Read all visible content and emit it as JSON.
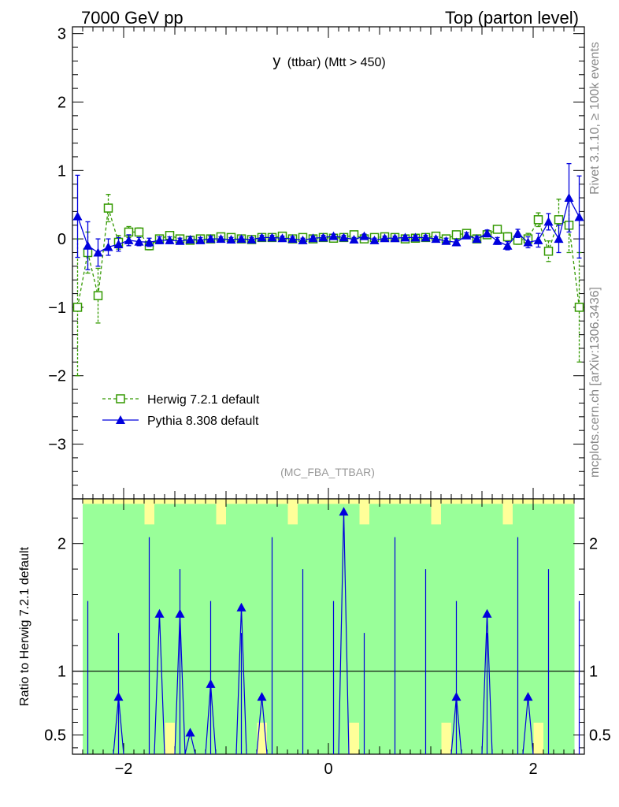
{
  "header": {
    "left": "7000 GeV pp",
    "right": "Top (parton level)"
  },
  "plot_title": {
    "main": "y",
    "sub": "(ttbar) (Mtt > 450)"
  },
  "analysis_tag": "(MC_FBA_TTBAR)",
  "side_text": {
    "rivet": "Rivet 3.1.10, ≥ 100k events",
    "mcplots": "mcplots.cern.ch [arXiv:1306.3436]"
  },
  "ratio_ylabel": "Ratio to Herwig 7.2.1 default",
  "colors": {
    "herwig": "#339900",
    "pythia": "#0000dd",
    "band_green": "#99ff99",
    "band_yellow": "#ffff99"
  },
  "chart_data": [
    {
      "type": "line",
      "title": "y (ttbar) (Mtt > 450)",
      "xlim": [
        -2.5,
        2.5
      ],
      "ylim": [
        -3.8,
        3.1
      ],
      "x_ticks": [
        -2,
        0,
        2
      ],
      "y_ticks": [
        -3,
        -2,
        -1,
        0,
        1,
        2,
        3
      ],
      "legend_position": "lower-left",
      "series": [
        {
          "name": "Herwig 7.2.1 default",
          "marker": "open-square",
          "line": "dashed",
          "x": [
            -2.45,
            -2.35,
            -2.25,
            -2.15,
            -2.05,
            -1.95,
            -1.85,
            -1.75,
            -1.65,
            -1.55,
            -1.45,
            -1.35,
            -1.25,
            -1.15,
            -1.05,
            -0.95,
            -0.85,
            -0.75,
            -0.65,
            -0.55,
            -0.45,
            -0.35,
            -0.25,
            -0.15,
            -0.05,
            0.05,
            0.15,
            0.25,
            0.35,
            0.45,
            0.55,
            0.65,
            0.75,
            0.85,
            0.95,
            1.05,
            1.15,
            1.25,
            1.35,
            1.45,
            1.55,
            1.65,
            1.75,
            1.85,
            1.95,
            2.05,
            2.15,
            2.25,
            2.35,
            2.45
          ],
          "y": [
            -1.0,
            -0.2,
            -0.83,
            0.45,
            -0.05,
            0.1,
            0.1,
            -0.1,
            0.0,
            0.05,
            0.0,
            -0.02,
            0.0,
            0.0,
            0.03,
            0.02,
            0.0,
            -0.01,
            0.02,
            0.02,
            0.04,
            0.0,
            0.02,
            0.0,
            0.02,
            0.01,
            0.02,
            0.06,
            0.0,
            0.02,
            0.03,
            0.02,
            0.0,
            0.01,
            0.02,
            0.04,
            0.0,
            0.06,
            0.08,
            0.0,
            0.06,
            0.14,
            0.03,
            -0.02,
            0.0,
            0.28,
            -0.18,
            0.28,
            0.2,
            -1.0
          ],
          "yerr": [
            1.0,
            0.3,
            0.4,
            0.2,
            0.1,
            0.08,
            0.06,
            0.06,
            0.05,
            0.05,
            0.04,
            0.04,
            0.04,
            0.04,
            0.03,
            0.03,
            0.03,
            0.03,
            0.03,
            0.03,
            0.03,
            0.03,
            0.03,
            0.03,
            0.03,
            0.03,
            0.03,
            0.03,
            0.03,
            0.03,
            0.03,
            0.03,
            0.03,
            0.03,
            0.03,
            0.03,
            0.04,
            0.04,
            0.04,
            0.04,
            0.05,
            0.05,
            0.06,
            0.06,
            0.08,
            0.1,
            0.15,
            0.3,
            0.4,
            0.8
          ]
        },
        {
          "name": "Pythia 8.308 default",
          "marker": "filled-triangle",
          "line": "solid",
          "x": [
            -2.45,
            -2.35,
            -2.25,
            -2.15,
            -2.05,
            -1.95,
            -1.85,
            -1.75,
            -1.65,
            -1.55,
            -1.45,
            -1.35,
            -1.25,
            -1.15,
            -1.05,
            -0.95,
            -0.85,
            -0.75,
            -0.65,
            -0.55,
            -0.45,
            -0.35,
            -0.25,
            -0.15,
            -0.05,
            0.05,
            0.15,
            0.25,
            0.35,
            0.45,
            0.55,
            0.65,
            0.75,
            0.85,
            0.95,
            1.05,
            1.15,
            1.25,
            1.35,
            1.45,
            1.55,
            1.65,
            1.75,
            1.85,
            1.95,
            2.05,
            2.15,
            2.25,
            2.35,
            2.45
          ],
          "y": [
            0.33,
            -0.1,
            -0.2,
            -0.12,
            -0.08,
            -0.02,
            -0.04,
            -0.05,
            -0.02,
            -0.02,
            -0.03,
            -0.01,
            -0.02,
            0.0,
            0.0,
            -0.01,
            0.0,
            -0.01,
            0.02,
            0.02,
            0.01,
            0.0,
            -0.02,
            0.01,
            0.02,
            0.04,
            0.02,
            -0.01,
            0.04,
            -0.02,
            0.01,
            0.01,
            0.02,
            0.02,
            0.02,
            0.0,
            -0.03,
            -0.05,
            0.05,
            0.0,
            0.08,
            -0.03,
            -0.1,
            0.08,
            -0.05,
            -0.02,
            0.25,
            0.0,
            0.6,
            0.32
          ],
          "yerr": [
            0.6,
            0.35,
            0.2,
            0.12,
            0.1,
            0.08,
            0.06,
            0.06,
            0.05,
            0.05,
            0.04,
            0.04,
            0.04,
            0.04,
            0.03,
            0.03,
            0.03,
            0.03,
            0.03,
            0.03,
            0.03,
            0.03,
            0.03,
            0.03,
            0.03,
            0.03,
            0.03,
            0.03,
            0.03,
            0.03,
            0.03,
            0.03,
            0.03,
            0.03,
            0.03,
            0.03,
            0.04,
            0.04,
            0.04,
            0.04,
            0.05,
            0.05,
            0.06,
            0.06,
            0.08,
            0.1,
            0.12,
            0.2,
            0.5,
            0.6
          ]
        }
      ]
    },
    {
      "type": "line",
      "title": "",
      "ylabel": "Ratio to Herwig 7.2.1 default",
      "xlim": [
        -2.5,
        2.5
      ],
      "ylim": [
        0.35,
        2.35
      ],
      "x_ticks": [
        -2,
        0,
        2
      ],
      "y_ticks": [
        0.5,
        1,
        2
      ],
      "reference_line": 1,
      "series": [
        {
          "name": "Pythia 8.308 default",
          "x": [
            -2.05,
            -1.65,
            -1.45,
            -1.35,
            -1.15,
            -0.85,
            -0.65,
            0.15,
            1.25,
            1.55,
            1.95
          ],
          "y": [
            0.8,
            1.45,
            1.45,
            0.52,
            0.9,
            1.5,
            0.8,
            2.25,
            0.8,
            1.45,
            0.8
          ]
        }
      ],
      "band_yellow_x": [
        -2.45,
        -2.25,
        -1.85,
        -1.65,
        -1.55,
        0.35,
        0.55,
        1.15,
        1.35,
        1.75,
        2.15,
        2.35
      ],
      "band_green_x": [
        -2.35,
        -2.15,
        -1.95,
        -1.75,
        -1.45,
        -1.25,
        0.25,
        0.45,
        1.25,
        1.45,
        1.65,
        2.05,
        2.25
      ]
    }
  ]
}
